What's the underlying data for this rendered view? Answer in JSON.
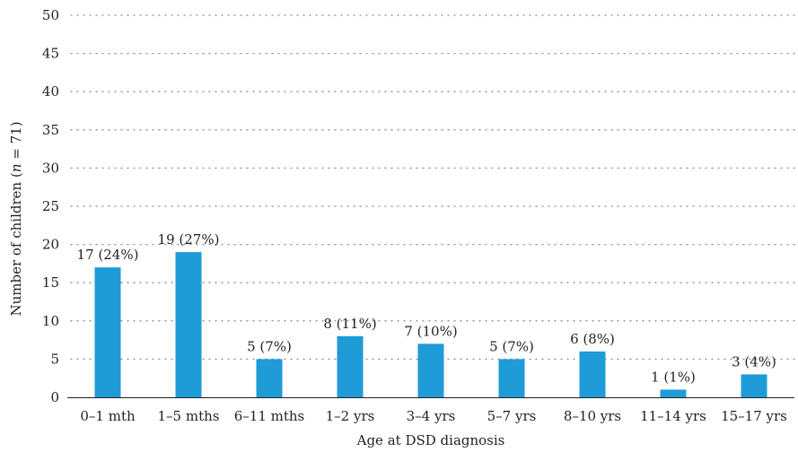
{
  "chart_data": {
    "type": "bar",
    "categories": [
      "0–1 mth",
      "1–5 mths",
      "6–11 mths",
      "1–2 yrs",
      "3–4 yrs",
      "5–7 yrs",
      "8–10 yrs",
      "11–14 yrs",
      "15–17 yrs"
    ],
    "values": [
      17,
      19,
      5,
      8,
      7,
      5,
      6,
      1,
      3
    ],
    "data_labels": [
      "17 (24%)",
      "19 (27%)",
      "5 (7%)",
      "8 (11%)",
      "7 (10%)",
      "5 (7%)",
      "6 (8%)",
      "1 (1%)",
      "3 (4%)"
    ],
    "title": "",
    "xlabel": "Age at DSD diagnosis",
    "ylabel_prefix": "Number of children (",
    "ylabel_italic": "n",
    "ylabel_suffix": " = 71)",
    "ylim": [
      0,
      50
    ],
    "yticks": [
      0,
      5,
      10,
      15,
      20,
      25,
      30,
      35,
      40,
      45,
      50
    ],
    "grid": "horizontal dotted",
    "bar_color": "#1f9bd7"
  }
}
